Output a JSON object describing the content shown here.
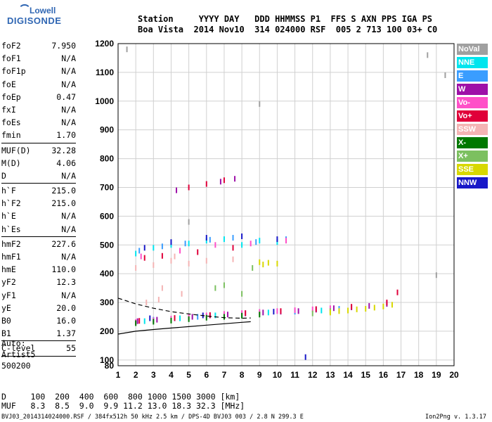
{
  "logo": {
    "line1": "Lowell",
    "line2": "DIGISONDE"
  },
  "header": {
    "line1": "Station     YYYY DAY   DDD HHMMSS P1  FFS S AXN PPS IGA PS",
    "line2": "Boa Vista  2014 Nov10  314 024000 RSF  005 2 713 100 03+ C0"
  },
  "params_group1": [
    {
      "k": "foF2",
      "v": "7.950"
    },
    {
      "k": "foF1",
      "v": "N/A"
    },
    {
      "k": "foF1p",
      "v": "N/A"
    },
    {
      "k": "foE",
      "v": "N/A"
    },
    {
      "k": "foEp",
      "v": "0.47"
    },
    {
      "k": "fxI",
      "v": "N/A"
    },
    {
      "k": "foEs",
      "v": "N/A"
    },
    {
      "k": "fmin",
      "v": "1.70"
    }
  ],
  "params_group2": [
    {
      "k": "MUF(D)",
      "v": "32.28"
    },
    {
      "k": "M(D)",
      "v": "4.06"
    },
    {
      "k": "D",
      "v": "N/A"
    }
  ],
  "params_group3": [
    {
      "k": "h`F",
      "v": "215.0"
    },
    {
      "k": "h`F2",
      "v": "215.0"
    },
    {
      "k": "h`E",
      "v": "N/A"
    },
    {
      "k": "h`Es",
      "v": "N/A"
    }
  ],
  "params_group4": [
    {
      "k": "hmF2",
      "v": "227.6"
    },
    {
      "k": "hmF1",
      "v": "N/A"
    },
    {
      "k": "hmE",
      "v": "110.0"
    },
    {
      "k": "yF2",
      "v": "12.3"
    },
    {
      "k": "yF1",
      "v": "N/A"
    },
    {
      "k": "yE",
      "v": "20.0"
    },
    {
      "k": "B0",
      "v": "16.0"
    },
    {
      "k": "B1",
      "v": "1.37"
    }
  ],
  "params_group5": [
    {
      "k": "C-level",
      "v": "55"
    }
  ],
  "auto": {
    "line1": "Auto:",
    "line2": "Artist5",
    "line3": "500200"
  },
  "dtable": {
    "d_row": "D     100  200  400  600  800 1000 1500 3000 [km]",
    "muf_row": "MUF   8.3  8.5  9.0  9.9 11.2 13.0 18.3 32.3 [MHz]"
  },
  "footer": "BVJ03_2014314024000.RSF / 384fx512h 50 kHz 2.5 km / DPS-4D BVJ03 003 / 2.8 N 299.3 E",
  "version": "Ion2Png v. 1.3.17",
  "legend": [
    {
      "label": "NoVal",
      "color": "#a0a0a0"
    },
    {
      "label": "NNE",
      "color": "#00e5ee"
    },
    {
      "label": "E",
      "color": "#3a9dff"
    },
    {
      "label": "W",
      "color": "#9e10a8"
    },
    {
      "label": "Vo-",
      "color": "#ff50c8"
    },
    {
      "label": "Vo+",
      "color": "#e0003a"
    },
    {
      "label": "SSW",
      "color": "#f4b4b4"
    },
    {
      "label": "X-",
      "color": "#007800"
    },
    {
      "label": "X+",
      "color": "#7cc060"
    },
    {
      "label": "SSE",
      "color": "#d8d800"
    },
    {
      "label": "NNW",
      "color": "#1818c8"
    }
  ],
  "chart_data": {
    "type": "scatter",
    "xlim": [
      1,
      20
    ],
    "ylim": [
      80,
      1200
    ],
    "x_ticks": [
      1,
      2,
      3,
      4,
      5,
      6,
      7,
      8,
      9,
      10,
      11,
      12,
      13,
      14,
      15,
      16,
      17,
      18,
      19,
      20
    ],
    "y_ticks": [
      80,
      100,
      200,
      300,
      400,
      500,
      600,
      700,
      800,
      900,
      1000,
      1100,
      1200
    ],
    "grid": true,
    "series": [
      {
        "name": "NNE",
        "color": "#00e5ee",
        "points": [
          [
            2.0,
            470
          ],
          [
            3.0,
            490
          ],
          [
            4.0,
            500
          ],
          [
            5.0,
            505
          ],
          [
            6.0,
            515
          ],
          [
            7.0,
            520
          ],
          [
            8.0,
            500
          ],
          [
            9.0,
            515
          ],
          [
            10.0,
            510
          ],
          [
            2.5,
            235
          ],
          [
            4.5,
            245
          ],
          [
            6.5,
            255
          ],
          [
            9.5,
            265
          ],
          [
            12.5,
            272
          ]
        ]
      },
      {
        "name": "E",
        "color": "#3a9dff",
        "points": [
          [
            2.2,
            480
          ],
          [
            3.5,
            495
          ],
          [
            4.8,
            505
          ],
          [
            6.2,
            518
          ],
          [
            7.5,
            525
          ],
          [
            8.8,
            510
          ],
          [
            10.5,
            520
          ],
          [
            3.0,
            240
          ],
          [
            5.5,
            250
          ],
          [
            8.0,
            258
          ],
          [
            11.0,
            268
          ],
          [
            13.5,
            278
          ]
        ]
      },
      {
        "name": "W",
        "color": "#9e10a8",
        "points": [
          [
            2.1,
            235
          ],
          [
            3.2,
            240
          ],
          [
            4.2,
            245
          ],
          [
            5.2,
            250
          ],
          [
            6.2,
            255
          ],
          [
            7.2,
            258
          ],
          [
            8.2,
            262
          ],
          [
            9.2,
            265
          ],
          [
            10.2,
            268
          ],
          [
            11.2,
            270
          ],
          [
            12.2,
            275
          ],
          [
            13.2,
            280
          ],
          [
            14.2,
            283
          ],
          [
            15.2,
            288
          ],
          [
            16.2,
            295
          ],
          [
            6.8,
            720
          ],
          [
            7.6,
            730
          ],
          [
            4.3,
            690
          ]
        ]
      },
      {
        "name": "Vo-",
        "color": "#ff50c8",
        "points": [
          [
            2.0,
            232
          ],
          [
            3.0,
            238
          ],
          [
            4.0,
            244
          ],
          [
            5.0,
            250
          ],
          [
            6.0,
            255
          ],
          [
            7.0,
            260
          ],
          [
            8.0,
            263
          ],
          [
            9.0,
            267
          ],
          [
            10.0,
            270
          ],
          [
            11.0,
            273
          ],
          [
            12.0,
            276
          ],
          [
            13.0,
            280
          ],
          [
            2.3,
            460
          ],
          [
            4.5,
            480
          ],
          [
            6.5,
            500
          ],
          [
            8.5,
            505
          ],
          [
            10.5,
            515
          ]
        ]
      },
      {
        "name": "Vo+",
        "color": "#e0003a",
        "points": [
          [
            2.2,
            236
          ],
          [
            4.2,
            246
          ],
          [
            6.2,
            256
          ],
          [
            8.2,
            263
          ],
          [
            10.2,
            270
          ],
          [
            12.2,
            277
          ],
          [
            14.2,
            285
          ],
          [
            16.2,
            300
          ],
          [
            16.8,
            335
          ],
          [
            5.0,
            700
          ],
          [
            6.0,
            712
          ],
          [
            7.0,
            725
          ],
          [
            2.5,
            455
          ],
          [
            3.5,
            462
          ],
          [
            5.5,
            475
          ],
          [
            7.5,
            490
          ]
        ]
      },
      {
        "name": "SSW",
        "color": "#f4b4b4",
        "points": [
          [
            2.0,
            420
          ],
          [
            3.0,
            430
          ],
          [
            4.0,
            445
          ],
          [
            5.0,
            435
          ],
          [
            3.5,
            350
          ],
          [
            4.2,
            460
          ],
          [
            6.0,
            445
          ],
          [
            7.5,
            450
          ],
          [
            2.6,
            300
          ],
          [
            3.3,
            310
          ],
          [
            4.6,
            330
          ]
        ]
      },
      {
        "name": "X-",
        "color": "#007800",
        "points": [
          [
            2.0,
            228
          ],
          [
            3.0,
            233
          ],
          [
            4.0,
            237
          ],
          [
            5.0,
            242
          ],
          [
            6.0,
            247
          ],
          [
            7.0,
            250
          ],
          [
            8.0,
            254
          ],
          [
            9.0,
            258
          ]
        ]
      },
      {
        "name": "X+",
        "color": "#7cc060",
        "points": [
          [
            6.5,
            350
          ],
          [
            7.0,
            360
          ],
          [
            8.0,
            330
          ],
          [
            8.6,
            420
          ],
          [
            12.0,
            262
          ],
          [
            13.0,
            270
          ]
        ]
      },
      {
        "name": "SSE",
        "color": "#d8d800",
        "points": [
          [
            9.0,
            440
          ],
          [
            9.2,
            432
          ],
          [
            9.5,
            438
          ],
          [
            10.0,
            435
          ],
          [
            13.0,
            265
          ],
          [
            13.5,
            270
          ],
          [
            14.0,
            272
          ],
          [
            14.5,
            276
          ],
          [
            15.0,
            278
          ],
          [
            15.5,
            282
          ],
          [
            16.0,
            286
          ],
          [
            16.5,
            292
          ]
        ]
      },
      {
        "name": "NNW",
        "color": "#1818c8",
        "points": [
          [
            2.5,
            490
          ],
          [
            4.0,
            510
          ],
          [
            6.0,
            525
          ],
          [
            8.0,
            530
          ],
          [
            10.0,
            520
          ],
          [
            2.8,
            245
          ],
          [
            5.8,
            255
          ],
          [
            9.8,
            268
          ],
          [
            11.6,
            110
          ]
        ]
      },
      {
        "name": "NoVal",
        "color": "#a0a0a0",
        "points": [
          [
            1.5,
            1180
          ],
          [
            18.5,
            1160
          ],
          [
            19.5,
            1090
          ],
          [
            9.0,
            990
          ],
          [
            5.0,
            580
          ],
          [
            19.0,
            395
          ]
        ]
      }
    ],
    "profile_lines": [
      {
        "name": "profile-solid",
        "style": "solid",
        "points": [
          [
            1,
            190
          ],
          [
            2,
            200
          ],
          [
            3,
            206
          ],
          [
            4,
            211
          ],
          [
            5,
            216
          ],
          [
            6,
            221
          ],
          [
            7,
            226
          ],
          [
            8,
            231
          ],
          [
            8.5,
            233
          ]
        ]
      },
      {
        "name": "profile-dashed",
        "style": "dashed",
        "points": [
          [
            1,
            315
          ],
          [
            2,
            295
          ],
          [
            3,
            280
          ],
          [
            4,
            268
          ],
          [
            5,
            260
          ],
          [
            6,
            253
          ],
          [
            7,
            247
          ],
          [
            8,
            245
          ],
          [
            8.5,
            246
          ]
        ]
      }
    ]
  }
}
